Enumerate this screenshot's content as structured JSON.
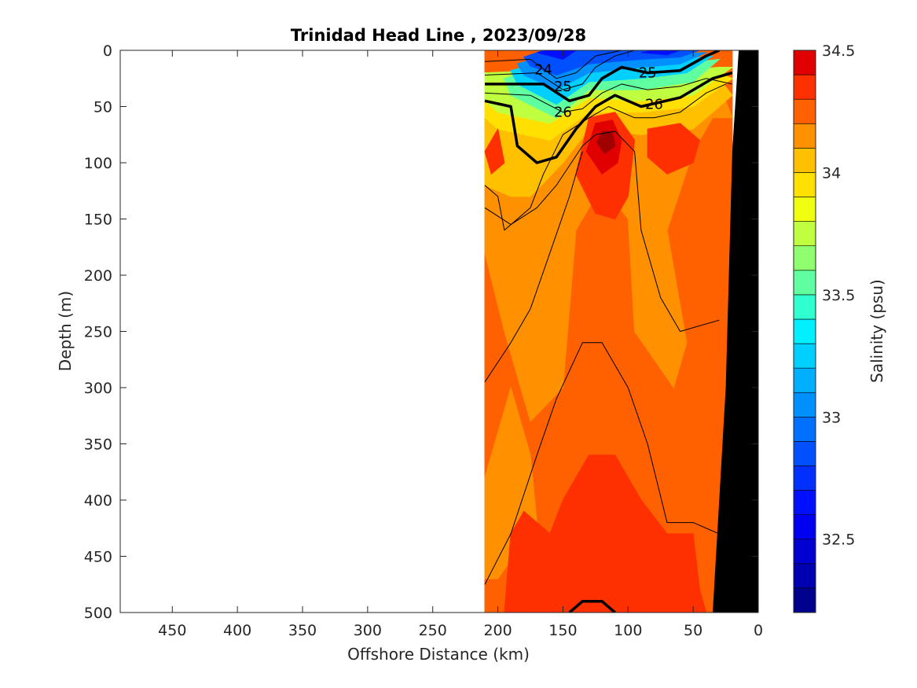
{
  "chart_data": {
    "type": "contourf",
    "title": "Trinidad Head Line , 2023/09/28",
    "xlabel": "Offshore Distance (km)",
    "ylabel": "Depth (m)",
    "colorbar_label": "Salinity (psu)",
    "xlim": [
      490,
      0
    ],
    "ylim": [
      0,
      500
    ],
    "x_reversed": true,
    "y_reversed": true,
    "x_ticks": [
      450,
      400,
      350,
      300,
      250,
      200,
      150,
      100,
      50,
      0
    ],
    "y_ticks": [
      0,
      50,
      100,
      150,
      200,
      250,
      300,
      350,
      400,
      450,
      500
    ],
    "colorbar": {
      "range": [
        32.2,
        34.5
      ],
      "ticks": [
        32.5,
        33,
        33.5,
        34,
        34.5
      ],
      "levels": [
        32.2,
        32.3,
        32.4,
        32.5,
        32.6,
        32.7,
        32.8,
        32.9,
        33.0,
        33.1,
        33.2,
        33.3,
        33.4,
        33.5,
        33.6,
        33.7,
        33.8,
        33.9,
        34.0,
        34.1,
        34.2,
        34.3,
        34.4,
        34.5
      ],
      "colors": [
        "#00008f",
        "#0000b0",
        "#0000d0",
        "#0000f0",
        "#0010ff",
        "#0030ff",
        "#0050ff",
        "#0070ff",
        "#0090ff",
        "#00b0ff",
        "#00d0ff",
        "#00f0ff",
        "#30ffcf",
        "#60ff9f",
        "#90ff6f",
        "#c0ff3f",
        "#f0ff0f",
        "#ffe000",
        "#ffc000",
        "#ff9000",
        "#ff6000",
        "#ff3000",
        "#e00000",
        "#a00000"
      ]
    },
    "data_extent_km": [
      210,
      20
    ],
    "density_contours": [
      {
        "level": 24,
        "label": "24",
        "bold": false
      },
      {
        "level": 25,
        "label": "25",
        "bold": true
      },
      {
        "level": 26,
        "label": "26",
        "bold": true
      }
    ],
    "bathymetry": {
      "color": "#000000",
      "points": [
        [
          35,
          500
        ],
        [
          25,
          300
        ],
        [
          20,
          90
        ],
        [
          15,
          0
        ],
        [
          0,
          0
        ],
        [
          0,
          500
        ]
      ]
    },
    "regions": [
      {
        "color": "#ff6000",
        "points": [
          [
            210,
            0
          ],
          [
            20,
            0
          ],
          [
            20,
            500
          ],
          [
            210,
            500
          ]
        ]
      },
      {
        "color": "#ff9000",
        "points": [
          [
            210,
            35
          ],
          [
            170,
            30
          ],
          [
            140,
            60
          ],
          [
            120,
            45
          ],
          [
            90,
            40
          ],
          [
            60,
            38
          ],
          [
            30,
            30
          ],
          [
            20,
            60
          ],
          [
            35,
            60
          ],
          [
            50,
            90
          ],
          [
            70,
            160
          ],
          [
            55,
            260
          ],
          [
            65,
            300
          ],
          [
            95,
            250
          ],
          [
            100,
            150
          ],
          [
            120,
            120
          ],
          [
            140,
            160
          ],
          [
            150,
            300
          ],
          [
            175,
            330
          ],
          [
            195,
            250
          ],
          [
            210,
            180
          ]
        ]
      },
      {
        "color": "#ff9000",
        "points": [
          [
            210,
            380
          ],
          [
            190,
            300
          ],
          [
            175,
            360
          ],
          [
            170,
            420
          ],
          [
            200,
            470
          ],
          [
            210,
            470
          ]
        ]
      },
      {
        "color": "#ffc000",
        "points": [
          [
            210,
            30
          ],
          [
            165,
            28
          ],
          [
            140,
            55
          ],
          [
            125,
            45
          ],
          [
            95,
            38
          ],
          [
            60,
            30
          ],
          [
            30,
            25
          ],
          [
            20,
            40
          ],
          [
            50,
            70
          ],
          [
            90,
            75
          ],
          [
            130,
            70
          ],
          [
            150,
            100
          ],
          [
            175,
            130
          ],
          [
            190,
            130
          ],
          [
            210,
            120
          ]
        ]
      },
      {
        "color": "#ffe000",
        "points": [
          [
            210,
            25
          ],
          [
            165,
            22
          ],
          [
            140,
            45
          ],
          [
            125,
            35
          ],
          [
            95,
            30
          ],
          [
            60,
            25
          ],
          [
            30,
            20
          ],
          [
            20,
            25
          ],
          [
            50,
            50
          ],
          [
            90,
            55
          ],
          [
            130,
            55
          ],
          [
            160,
            80
          ],
          [
            200,
            70
          ],
          [
            210,
            60
          ]
        ]
      },
      {
        "color": "#c0ff3f",
        "points": [
          [
            210,
            20
          ],
          [
            165,
            18
          ],
          [
            140,
            38
          ],
          [
            125,
            25
          ],
          [
            95,
            22
          ],
          [
            60,
            18
          ],
          [
            30,
            15
          ],
          [
            20,
            15
          ],
          [
            50,
            40
          ],
          [
            90,
            45
          ],
          [
            130,
            42
          ],
          [
            160,
            65
          ],
          [
            200,
            55
          ],
          [
            210,
            45
          ]
        ]
      },
      {
        "color": "#60ff9f",
        "points": [
          [
            195,
            25
          ],
          [
            165,
            15
          ],
          [
            140,
            30
          ],
          [
            130,
            18
          ],
          [
            100,
            15
          ],
          [
            60,
            12
          ],
          [
            30,
            8
          ],
          [
            50,
            28
          ],
          [
            90,
            35
          ],
          [
            130,
            35
          ],
          [
            155,
            60
          ],
          [
            190,
            40
          ]
        ]
      },
      {
        "color": "#00d0ff",
        "points": [
          [
            190,
            18
          ],
          [
            165,
            10
          ],
          [
            145,
            25
          ],
          [
            130,
            12
          ],
          [
            100,
            10
          ],
          [
            60,
            8
          ],
          [
            35,
            5
          ],
          [
            55,
            20
          ],
          [
            90,
            25
          ],
          [
            130,
            28
          ],
          [
            155,
            48
          ],
          [
            185,
            30
          ]
        ]
      },
      {
        "color": "#0090ff",
        "points": [
          [
            185,
            12
          ],
          [
            165,
            5
          ],
          [
            150,
            18
          ],
          [
            135,
            6
          ],
          [
            105,
            5
          ],
          [
            65,
            3
          ],
          [
            40,
            2
          ],
          [
            60,
            12
          ],
          [
            90,
            15
          ],
          [
            130,
            20
          ],
          [
            155,
            35
          ],
          [
            180,
            22
          ]
        ]
      },
      {
        "color": "#0050ff",
        "points": [
          [
            180,
            6
          ],
          [
            165,
            0
          ],
          [
            135,
            0
          ],
          [
            110,
            0
          ],
          [
            70,
            0
          ],
          [
            45,
            0
          ],
          [
            60,
            6
          ],
          [
            90,
            8
          ],
          [
            130,
            12
          ],
          [
            155,
            22
          ],
          [
            175,
            14
          ]
        ]
      },
      {
        "color": "#0010ff",
        "points": [
          [
            170,
            2
          ],
          [
            160,
            0
          ],
          [
            140,
            0
          ],
          [
            150,
            8
          ]
        ]
      },
      {
        "color": "#0010ff",
        "points": [
          [
            90,
            2
          ],
          [
            80,
            0
          ],
          [
            60,
            0
          ],
          [
            70,
            4
          ]
        ]
      },
      {
        "color": "#ff3000",
        "points": [
          [
            130,
            60
          ],
          [
            110,
            55
          ],
          [
            95,
            80
          ],
          [
            100,
            130
          ],
          [
            110,
            150
          ],
          [
            125,
            145
          ],
          [
            140,
            110
          ]
        ]
      },
      {
        "color": "#e00000",
        "points": [
          [
            125,
            65
          ],
          [
            112,
            62
          ],
          [
            105,
            80
          ],
          [
            108,
            100
          ],
          [
            120,
            110
          ],
          [
            132,
            90
          ]
        ]
      },
      {
        "color": "#a00000",
        "points": [
          [
            120,
            72
          ],
          [
            112,
            72
          ],
          [
            110,
            85
          ],
          [
            118,
            92
          ],
          [
            124,
            82
          ]
        ]
      },
      {
        "color": "#ff3000",
        "points": [
          [
            85,
            70
          ],
          [
            60,
            65
          ],
          [
            45,
            80
          ],
          [
            50,
            100
          ],
          [
            70,
            110
          ],
          [
            85,
            95
          ]
        ]
      },
      {
        "color": "#ff3000",
        "points": [
          [
            210,
            90
          ],
          [
            200,
            70
          ],
          [
            195,
            100
          ],
          [
            205,
            110
          ]
        ]
      },
      {
        "color": "#ff3000",
        "points": [
          [
            195,
            500
          ],
          [
            190,
            430
          ],
          [
            180,
            410
          ],
          [
            160,
            430
          ],
          [
            150,
            400
          ],
          [
            130,
            360
          ],
          [
            110,
            360
          ],
          [
            90,
            400
          ],
          [
            70,
            430
          ],
          [
            50,
            430
          ],
          [
            45,
            480
          ],
          [
            40,
            500
          ]
        ]
      }
    ],
    "isolines": [
      {
        "points": [
          [
            210,
            10
          ],
          [
            175,
            8
          ],
          [
            155,
            25
          ],
          [
            140,
            20
          ],
          [
            125,
            5
          ],
          [
            105,
            0
          ]
        ],
        "bold": false,
        "label": "24"
      },
      {
        "points": [
          [
            210,
            22
          ],
          [
            170,
            20
          ],
          [
            150,
            35
          ],
          [
            135,
            30
          ],
          [
            125,
            15
          ],
          [
            110,
            5
          ],
          [
            95,
            0
          ]
        ],
        "bold": false
      },
      {
        "points": [
          [
            210,
            30
          ],
          [
            165,
            30
          ],
          [
            145,
            45
          ],
          [
            130,
            40
          ],
          [
            120,
            25
          ],
          [
            105,
            15
          ],
          [
            85,
            20
          ],
          [
            60,
            18
          ],
          [
            40,
            5
          ],
          [
            30,
            0
          ]
        ],
        "bold": true,
        "label": "25"
      },
      {
        "points": [
          [
            210,
            38
          ],
          [
            175,
            40
          ],
          [
            150,
            55
          ],
          [
            135,
            52
          ],
          [
            120,
            38
          ],
          [
            105,
            30
          ],
          [
            85,
            35
          ],
          [
            60,
            32
          ],
          [
            40,
            25
          ],
          [
            20,
            30
          ]
        ],
        "bold": false
      },
      {
        "points": [
          [
            210,
            45
          ],
          [
            190,
            50
          ],
          [
            185,
            85
          ],
          [
            170,
            100
          ],
          [
            155,
            95
          ],
          [
            140,
            70
          ],
          [
            125,
            50
          ],
          [
            110,
            40
          ],
          [
            90,
            50
          ],
          [
            60,
            42
          ],
          [
            35,
            25
          ],
          [
            20,
            20
          ]
        ],
        "bold": true,
        "label": "26"
      },
      {
        "points": [
          [
            210,
            120
          ],
          [
            200,
            130
          ],
          [
            195,
            160
          ],
          [
            175,
            140
          ],
          [
            165,
            110
          ],
          [
            150,
            75
          ],
          [
            130,
            60
          ],
          [
            115,
            50
          ],
          [
            95,
            60
          ],
          [
            80,
            60
          ],
          [
            60,
            55
          ],
          [
            40,
            38
          ],
          [
            25,
            30
          ]
        ],
        "bold": false
      },
      {
        "points": [
          [
            210,
            140
          ],
          [
            190,
            155
          ],
          [
            170,
            140
          ],
          [
            155,
            120
          ],
          [
            135,
            85
          ],
          [
            125,
            75
          ],
          [
            110,
            72
          ],
          [
            95,
            90
          ],
          [
            90,
            160
          ],
          [
            75,
            220
          ],
          [
            60,
            250
          ],
          [
            30,
            240
          ]
        ],
        "bold": false
      },
      {
        "points": [
          [
            210,
            295
          ],
          [
            190,
            260
          ],
          [
            175,
            230
          ],
          [
            160,
            180
          ],
          [
            145,
            130
          ],
          [
            135,
            90
          ]
        ],
        "bold": false
      },
      {
        "points": [
          [
            210,
            475
          ],
          [
            190,
            430
          ],
          [
            170,
            360
          ],
          [
            155,
            310
          ],
          [
            135,
            260
          ],
          [
            120,
            260
          ],
          [
            100,
            300
          ],
          [
            85,
            350
          ],
          [
            70,
            420
          ],
          [
            50,
            420
          ],
          [
            30,
            430
          ]
        ],
        "bold": false
      },
      {
        "points": [
          [
            145,
            500
          ],
          [
            135,
            490
          ],
          [
            120,
            490
          ],
          [
            110,
            500
          ]
        ],
        "bold": true
      }
    ]
  }
}
